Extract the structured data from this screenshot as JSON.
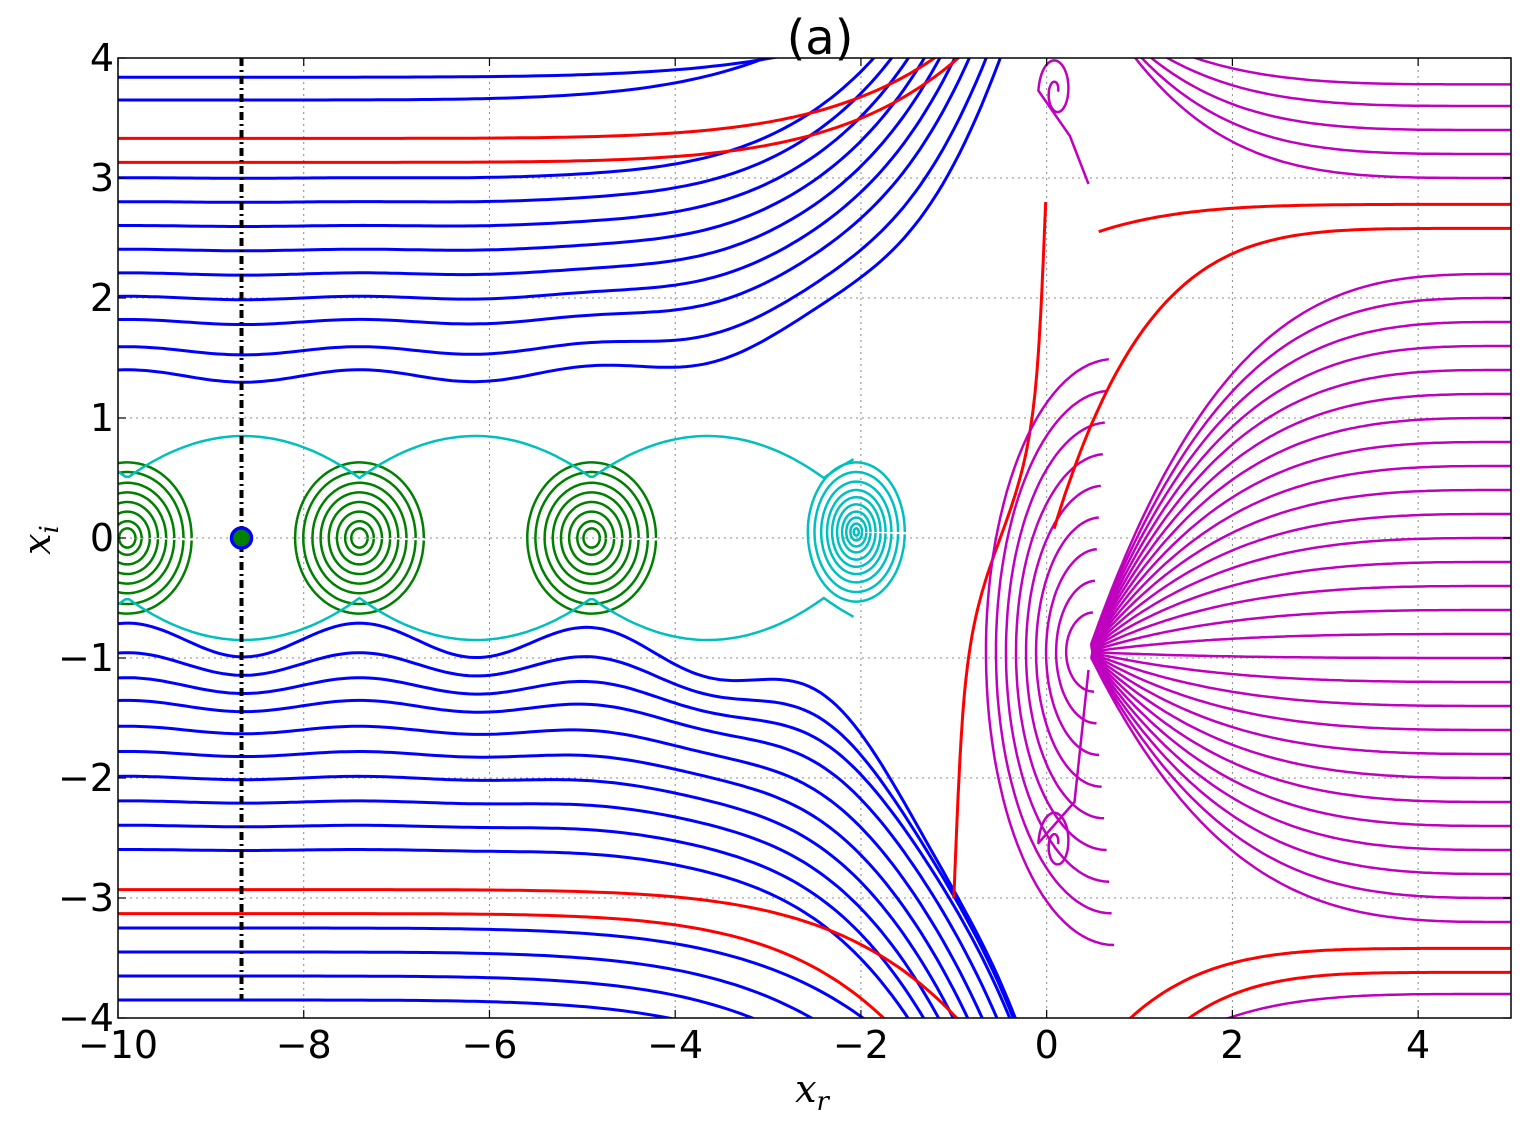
{
  "chart_data": {
    "type": "line",
    "title": "(a)",
    "xlabel": "x_r",
    "ylabel": "x_i",
    "xlabel_main": "x",
    "xlabel_sub": "r",
    "ylabel_main": "x",
    "ylabel_sub": "i",
    "xlim": [
      -10,
      5
    ],
    "ylim": [
      -4,
      4
    ],
    "xticks": [
      -10,
      -8,
      -6,
      -4,
      -2,
      0,
      2,
      4
    ],
    "yticks": [
      -4,
      -3,
      -2,
      -1,
      0,
      1,
      2,
      3,
      4
    ],
    "xtick_labels": [
      "−10",
      "−8",
      "−6",
      "−4",
      "−2",
      "0",
      "2",
      "4"
    ],
    "ytick_labels": [
      "−4",
      "−3",
      "−2",
      "−1",
      "0",
      "1",
      "2",
      "3",
      "4"
    ],
    "grid": true,
    "colors": {
      "blue": "#0000ff",
      "red": "#ff0000",
      "green": "#007f00",
      "cyan": "#00bfbf",
      "magenta": "#bf00bf",
      "black": "#000000"
    },
    "vertical_line_x": -8.67,
    "initial_point": [
      -8.67,
      0.0
    ],
    "blue_left_levels": [
      3.84,
      3.65,
      3.0,
      2.8,
      2.6,
      2.4,
      2.2,
      2.0,
      1.8,
      1.56,
      1.35,
      -0.85,
      -1.05,
      -1.23,
      -1.4,
      -1.6,
      -1.8,
      -2.0,
      -2.2,
      -2.4,
      -2.6,
      -3.25,
      -3.45,
      -3.65,
      -3.85
    ],
    "red_left_levels": [
      3.33,
      3.13,
      -2.93,
      -3.13
    ],
    "green_centers": [
      -9.9,
      -7.4,
      -4.9
    ],
    "green_radii": [
      0.08,
      0.14,
      0.22,
      0.3,
      0.38,
      0.46,
      0.55,
      0.63
    ],
    "cyan_center": [
      -2.05,
      0.05
    ],
    "cyan_radii": [
      0.03,
      0.07,
      0.12,
      0.17,
      0.23,
      0.29,
      0.35,
      0.42,
      0.5,
      0.58
    ],
    "magenta_source": [
      0.45,
      -0.95
    ],
    "magenta_right_levels": [
      3.78,
      3.6,
      3.4,
      3.2,
      3.0,
      2.2,
      2.0,
      1.8,
      1.6,
      1.4,
      1.2,
      1.0,
      0.8,
      0.6,
      0.4,
      0.2,
      0.0,
      -0.2,
      -0.4,
      -0.6,
      -0.8,
      -1.0,
      -1.2,
      -1.4,
      -1.6,
      -1.8,
      -2.0,
      -2.2,
      -2.4,
      -2.6,
      -2.8,
      -3.0,
      -3.2,
      -3.8
    ],
    "red_right_levels": [
      2.78,
      2.58,
      -3.42,
      -3.62
    ]
  }
}
